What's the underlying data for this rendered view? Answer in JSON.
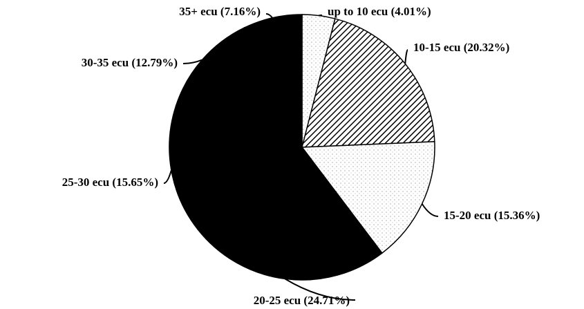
{
  "chart_data": {
    "type": "pie",
    "categories": [
      "up to 10 ecu",
      "10-15 ecu",
      "15-20 ecu",
      "20-25 ecu",
      "25-30 ecu",
      "30-35 ecu",
      "35+ ecu"
    ],
    "values": [
      4.01,
      20.32,
      15.36,
      24.71,
      15.65,
      12.79,
      7.16
    ],
    "value_labels": [
      "(4.01%)",
      "(20.32%)",
      "(15.36%)",
      "(24.71%)",
      "(15.65%)",
      "(12.79%)",
      "(7.16%)"
    ],
    "colors": [
      "#ffffff",
      "#ffffff",
      "#ffffff",
      "#000000",
      "#000000",
      "#000000",
      "#000000"
    ],
    "patterns": [
      "dots",
      "hatch",
      "dots",
      null,
      null,
      null,
      null
    ]
  }
}
